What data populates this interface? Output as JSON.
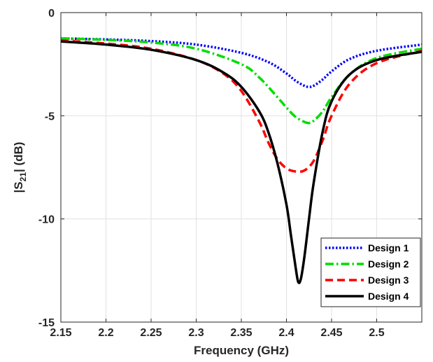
{
  "chart_data": {
    "type": "line",
    "xlabel": "Frequency (GHz)",
    "ylabel": "|S21| (dB)",
    "xlim": [
      2.15,
      2.55
    ],
    "ylim": [
      -15,
      0
    ],
    "xticks": [
      2.15,
      2.2,
      2.25,
      2.3,
      2.35,
      2.4,
      2.45,
      2.5
    ],
    "xtick_labels": [
      "2.15",
      "2.2",
      "2.25",
      "2.3",
      "2.35",
      "2.4",
      "2.45",
      "2.5"
    ],
    "yticks": [
      0,
      -5,
      -10,
      -15
    ],
    "ytick_labels": [
      "0",
      "-5",
      "-10",
      "-15"
    ],
    "grid": true,
    "legend_position": "bottom-right",
    "series": [
      {
        "name": "Design 1",
        "color": "#0000ff",
        "style": "dotted",
        "x": [
          2.15,
          2.2,
          2.25,
          2.3,
          2.35,
          2.38,
          2.4,
          2.41,
          2.42,
          2.425,
          2.43,
          2.44,
          2.45,
          2.47,
          2.5,
          2.55
        ],
        "y": [
          -1.25,
          -1.3,
          -1.38,
          -1.55,
          -1.95,
          -2.4,
          -2.95,
          -3.3,
          -3.55,
          -3.6,
          -3.55,
          -3.25,
          -2.85,
          -2.25,
          -1.85,
          -1.55
        ]
      },
      {
        "name": "Design 2",
        "color": "#00dd00",
        "style": "dashdot",
        "x": [
          2.15,
          2.2,
          2.25,
          2.3,
          2.35,
          2.37,
          2.39,
          2.4,
          2.41,
          2.42,
          2.425,
          2.43,
          2.44,
          2.45,
          2.47,
          2.5,
          2.55
        ],
        "y": [
          -1.25,
          -1.32,
          -1.45,
          -1.75,
          -2.5,
          -3.15,
          -4.1,
          -4.6,
          -5.05,
          -5.3,
          -5.35,
          -5.25,
          -4.8,
          -4.1,
          -3.0,
          -2.2,
          -1.75
        ]
      },
      {
        "name": "Design 3",
        "color": "#ff0000",
        "style": "dashed",
        "x": [
          2.15,
          2.2,
          2.25,
          2.3,
          2.33,
          2.35,
          2.37,
          2.38,
          2.39,
          2.4,
          2.41,
          2.42,
          2.43,
          2.44,
          2.45,
          2.47,
          2.5,
          2.55
        ],
        "y": [
          -1.35,
          -1.5,
          -1.75,
          -2.3,
          -2.95,
          -3.8,
          -5.3,
          -6.3,
          -7.1,
          -7.55,
          -7.7,
          -7.65,
          -7.2,
          -6.2,
          -5.0,
          -3.45,
          -2.45,
          -1.85
        ]
      },
      {
        "name": "Design 4",
        "color": "#000000",
        "style": "solid",
        "x": [
          2.15,
          2.2,
          2.25,
          2.3,
          2.33,
          2.35,
          2.37,
          2.38,
          2.39,
          2.4,
          2.405,
          2.41,
          2.413,
          2.416,
          2.42,
          2.425,
          2.43,
          2.44,
          2.45,
          2.47,
          2.5,
          2.55
        ],
        "y": [
          -1.4,
          -1.55,
          -1.8,
          -2.3,
          -2.9,
          -3.6,
          -4.8,
          -5.8,
          -7.3,
          -9.3,
          -10.8,
          -12.3,
          -13.05,
          -12.9,
          -11.8,
          -10.0,
          -8.3,
          -5.8,
          -4.3,
          -3.0,
          -2.3,
          -1.9
        ]
      }
    ]
  }
}
